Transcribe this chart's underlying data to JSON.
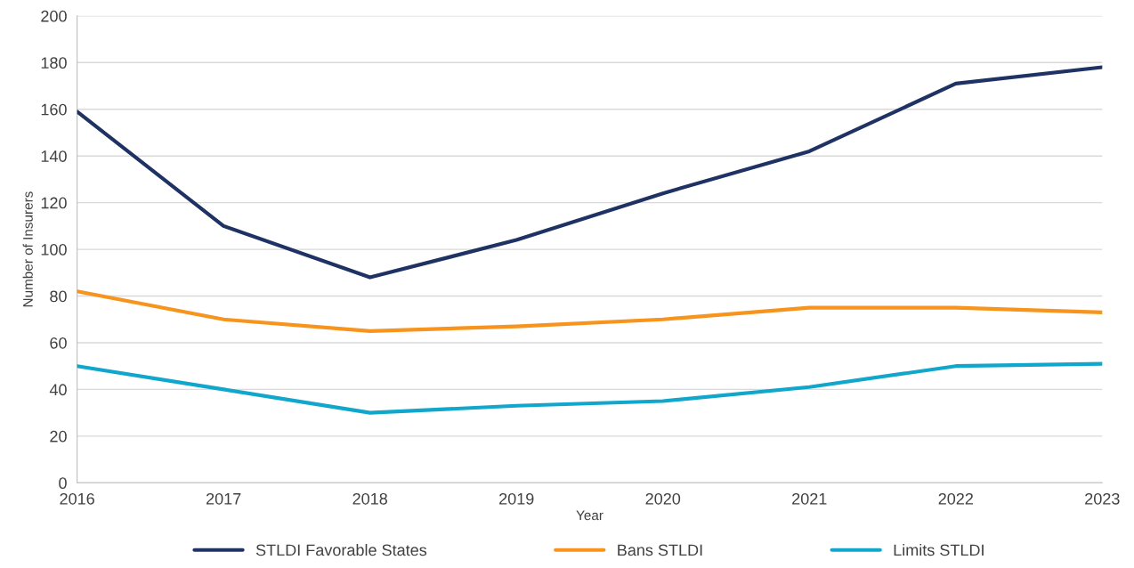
{
  "chart_data": {
    "type": "line",
    "xlabel": "Year",
    "ylabel": "Number of Insurers",
    "x": [
      2016,
      2017,
      2018,
      2019,
      2020,
      2021,
      2022,
      2023
    ],
    "series": [
      {
        "name": "STLDI Favorable States",
        "color": "#1f3264",
        "values": [
          159,
          110,
          88,
          104,
          124,
          142,
          171,
          178
        ]
      },
      {
        "name": "Bans STLDI",
        "color": "#f7941d",
        "values": [
          82,
          70,
          65,
          67,
          70,
          75,
          75,
          73
        ]
      },
      {
        "name": "Limits STLDI",
        "color": "#11a6cb",
        "values": [
          50,
          40,
          30,
          33,
          35,
          41,
          50,
          51
        ]
      }
    ],
    "xlim": [
      2016,
      2023
    ],
    "xticks": [
      2016,
      2017,
      2018,
      2019,
      2020,
      2021,
      2022,
      2023
    ],
    "ylim": [
      0,
      200
    ],
    "yticks": [
      0,
      20,
      40,
      60,
      80,
      100,
      120,
      140,
      160,
      180,
      200
    ],
    "grid": "y",
    "legend": "bottom",
    "marker": "none",
    "line_style": "solid"
  }
}
